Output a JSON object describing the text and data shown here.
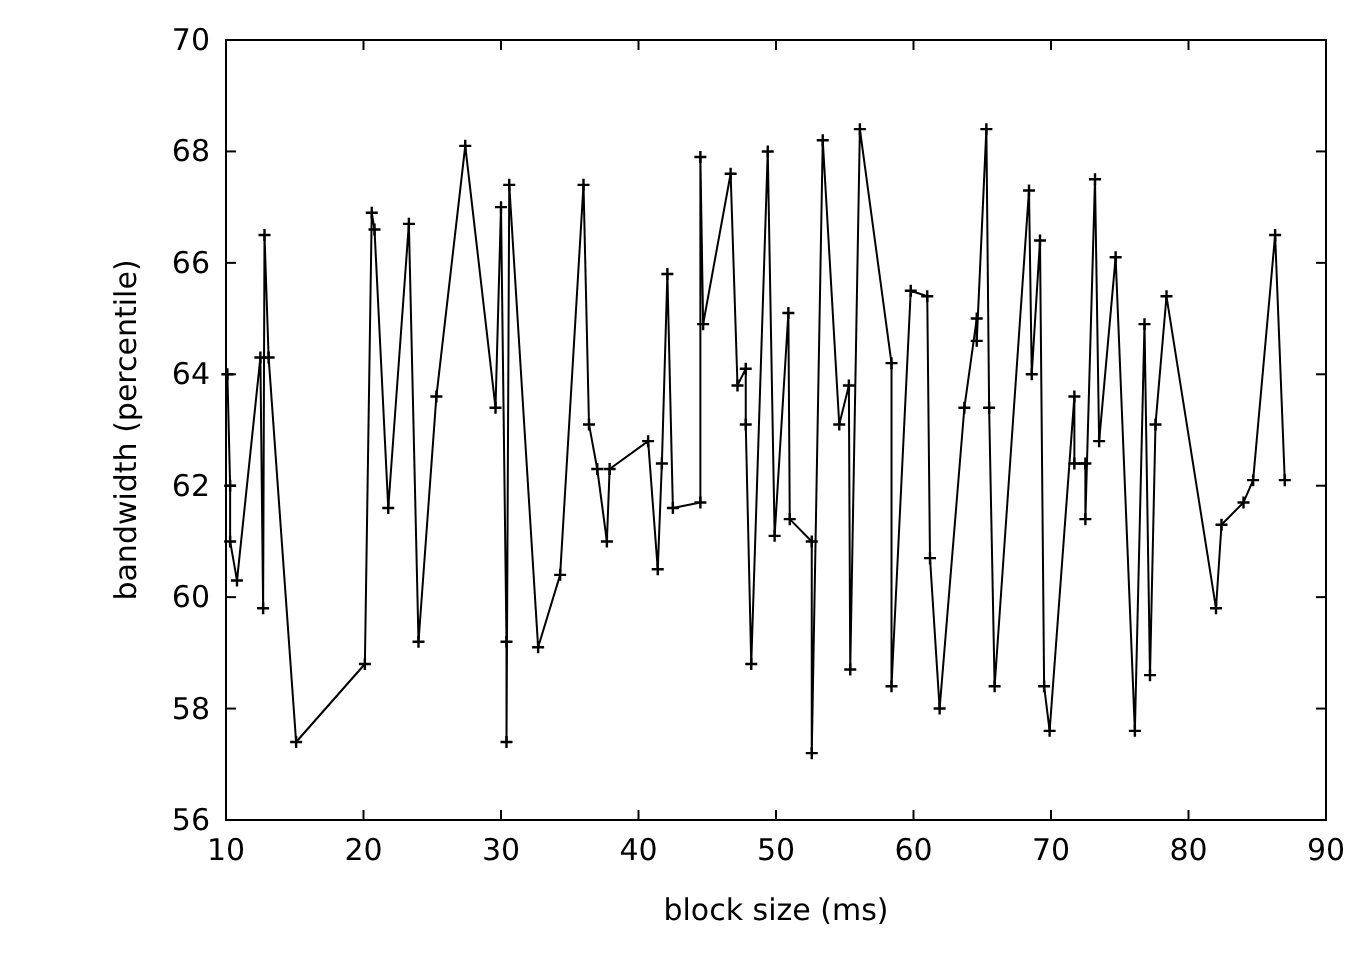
{
  "chart_data": {
    "type": "line",
    "xlabel": "block size (ms)",
    "ylabel": "bandwidth (percentile)",
    "xlim": [
      10,
      90
    ],
    "xticks": [
      10,
      20,
      30,
      40,
      50,
      60,
      70,
      80,
      90
    ],
    "ylim": [
      56,
      70
    ],
    "yticks": [
      56,
      58,
      60,
      62,
      64,
      66,
      68,
      70
    ],
    "grid": false,
    "marker": "cross",
    "line_style": "solid",
    "series": [
      {
        "color": "#000000",
        "x": [
          10.1,
          10.3,
          10.3,
          10.8,
          12.5,
          12.7,
          12.8,
          13.1,
          15.1,
          20.1,
          20.6,
          20.8,
          21.8,
          23.3,
          24.0,
          25.3,
          27.4,
          29.6,
          30.0,
          30.4,
          30.4,
          30.6,
          32.7,
          34.3,
          36.0,
          36.4,
          37.0,
          37.7,
          37.9,
          40.7,
          41.4,
          41.7,
          42.1,
          42.5,
          44.5,
          44.5,
          44.7,
          46.7,
          47.2,
          47.8,
          47.8,
          48.2,
          49.4,
          49.9,
          50.9,
          51.0,
          52.6,
          52.6,
          53.4,
          54.6,
          55.3,
          55.4,
          56.1,
          58.4,
          58.4,
          59.8,
          61.0,
          61.2,
          61.9,
          63.7,
          64.6,
          64.6,
          65.3,
          65.5,
          65.9,
          68.4,
          68.6,
          69.2,
          69.5,
          69.9,
          71.7,
          71.7,
          72.5,
          72.5,
          73.2,
          73.5,
          74.7,
          76.1,
          76.8,
          77.2,
          77.6,
          78.4,
          82.0,
          82.4,
          84.0,
          84.7,
          86.3,
          87.0
        ],
        "values": [
          64.0,
          62.0,
          61.0,
          60.3,
          64.3,
          59.8,
          66.5,
          64.3,
          57.4,
          58.8,
          66.9,
          66.6,
          61.6,
          66.7,
          59.2,
          63.6,
          68.1,
          63.4,
          67.0,
          59.2,
          57.4,
          67.4,
          59.1,
          60.4,
          67.4,
          63.1,
          62.3,
          61.0,
          62.3,
          62.8,
          60.5,
          62.4,
          65.8,
          61.6,
          61.7,
          67.9,
          64.9,
          67.6,
          63.8,
          64.1,
          63.1,
          58.8,
          68.0,
          61.1,
          65.1,
          61.4,
          61.0,
          57.2,
          68.2,
          63.1,
          63.8,
          58.7,
          68.4,
          64.2,
          58.4,
          65.5,
          65.4,
          60.7,
          58.0,
          63.4,
          65.0,
          64.6,
          68.4,
          63.4,
          58.4,
          67.3,
          64.0,
          66.4,
          58.4,
          57.6,
          63.6,
          62.4,
          62.4,
          61.4,
          67.5,
          62.8,
          66.1,
          57.6,
          64.9,
          58.6,
          63.1,
          65.4,
          59.8,
          61.3,
          61.7,
          62.1,
          66.5,
          62.1
        ]
      }
    ]
  }
}
